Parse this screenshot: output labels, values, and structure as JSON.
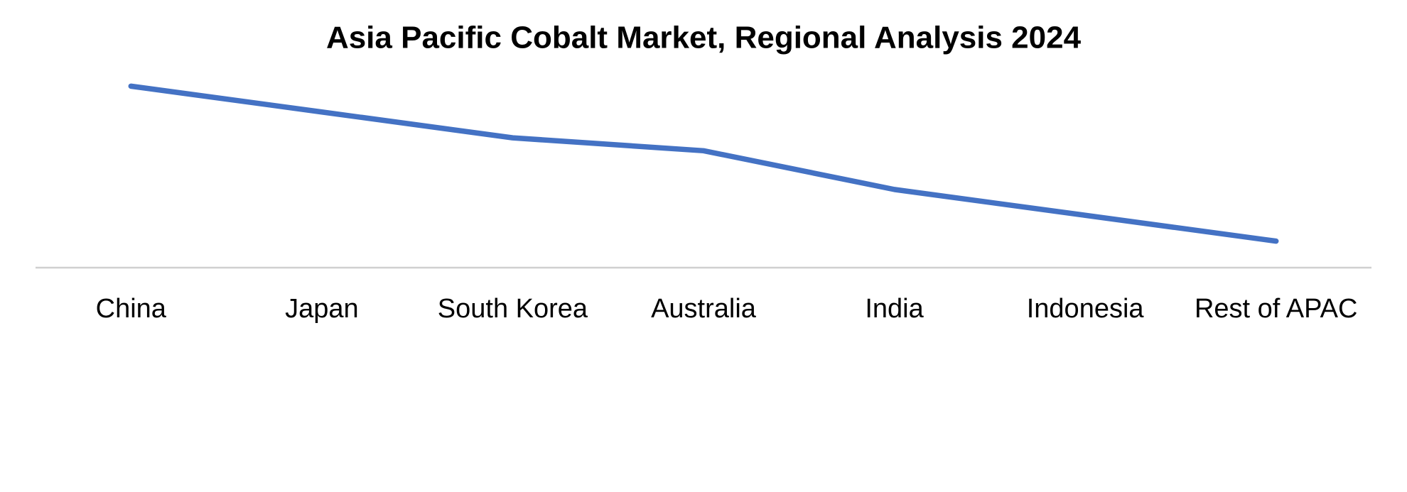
{
  "chart_data": {
    "type": "line",
    "title": "Asia Pacific Cobalt Market, Regional Analysis 2024",
    "categories": [
      "China",
      "Japan",
      "South Korea",
      "Australia",
      "India",
      "Indonesia",
      "Rest of APAC"
    ],
    "values": [
      7,
      6,
      5,
      4.5,
      3,
      2,
      1
    ],
    "color": "#4472c4",
    "ylim": [
      0,
      8
    ],
    "grid": false
  }
}
